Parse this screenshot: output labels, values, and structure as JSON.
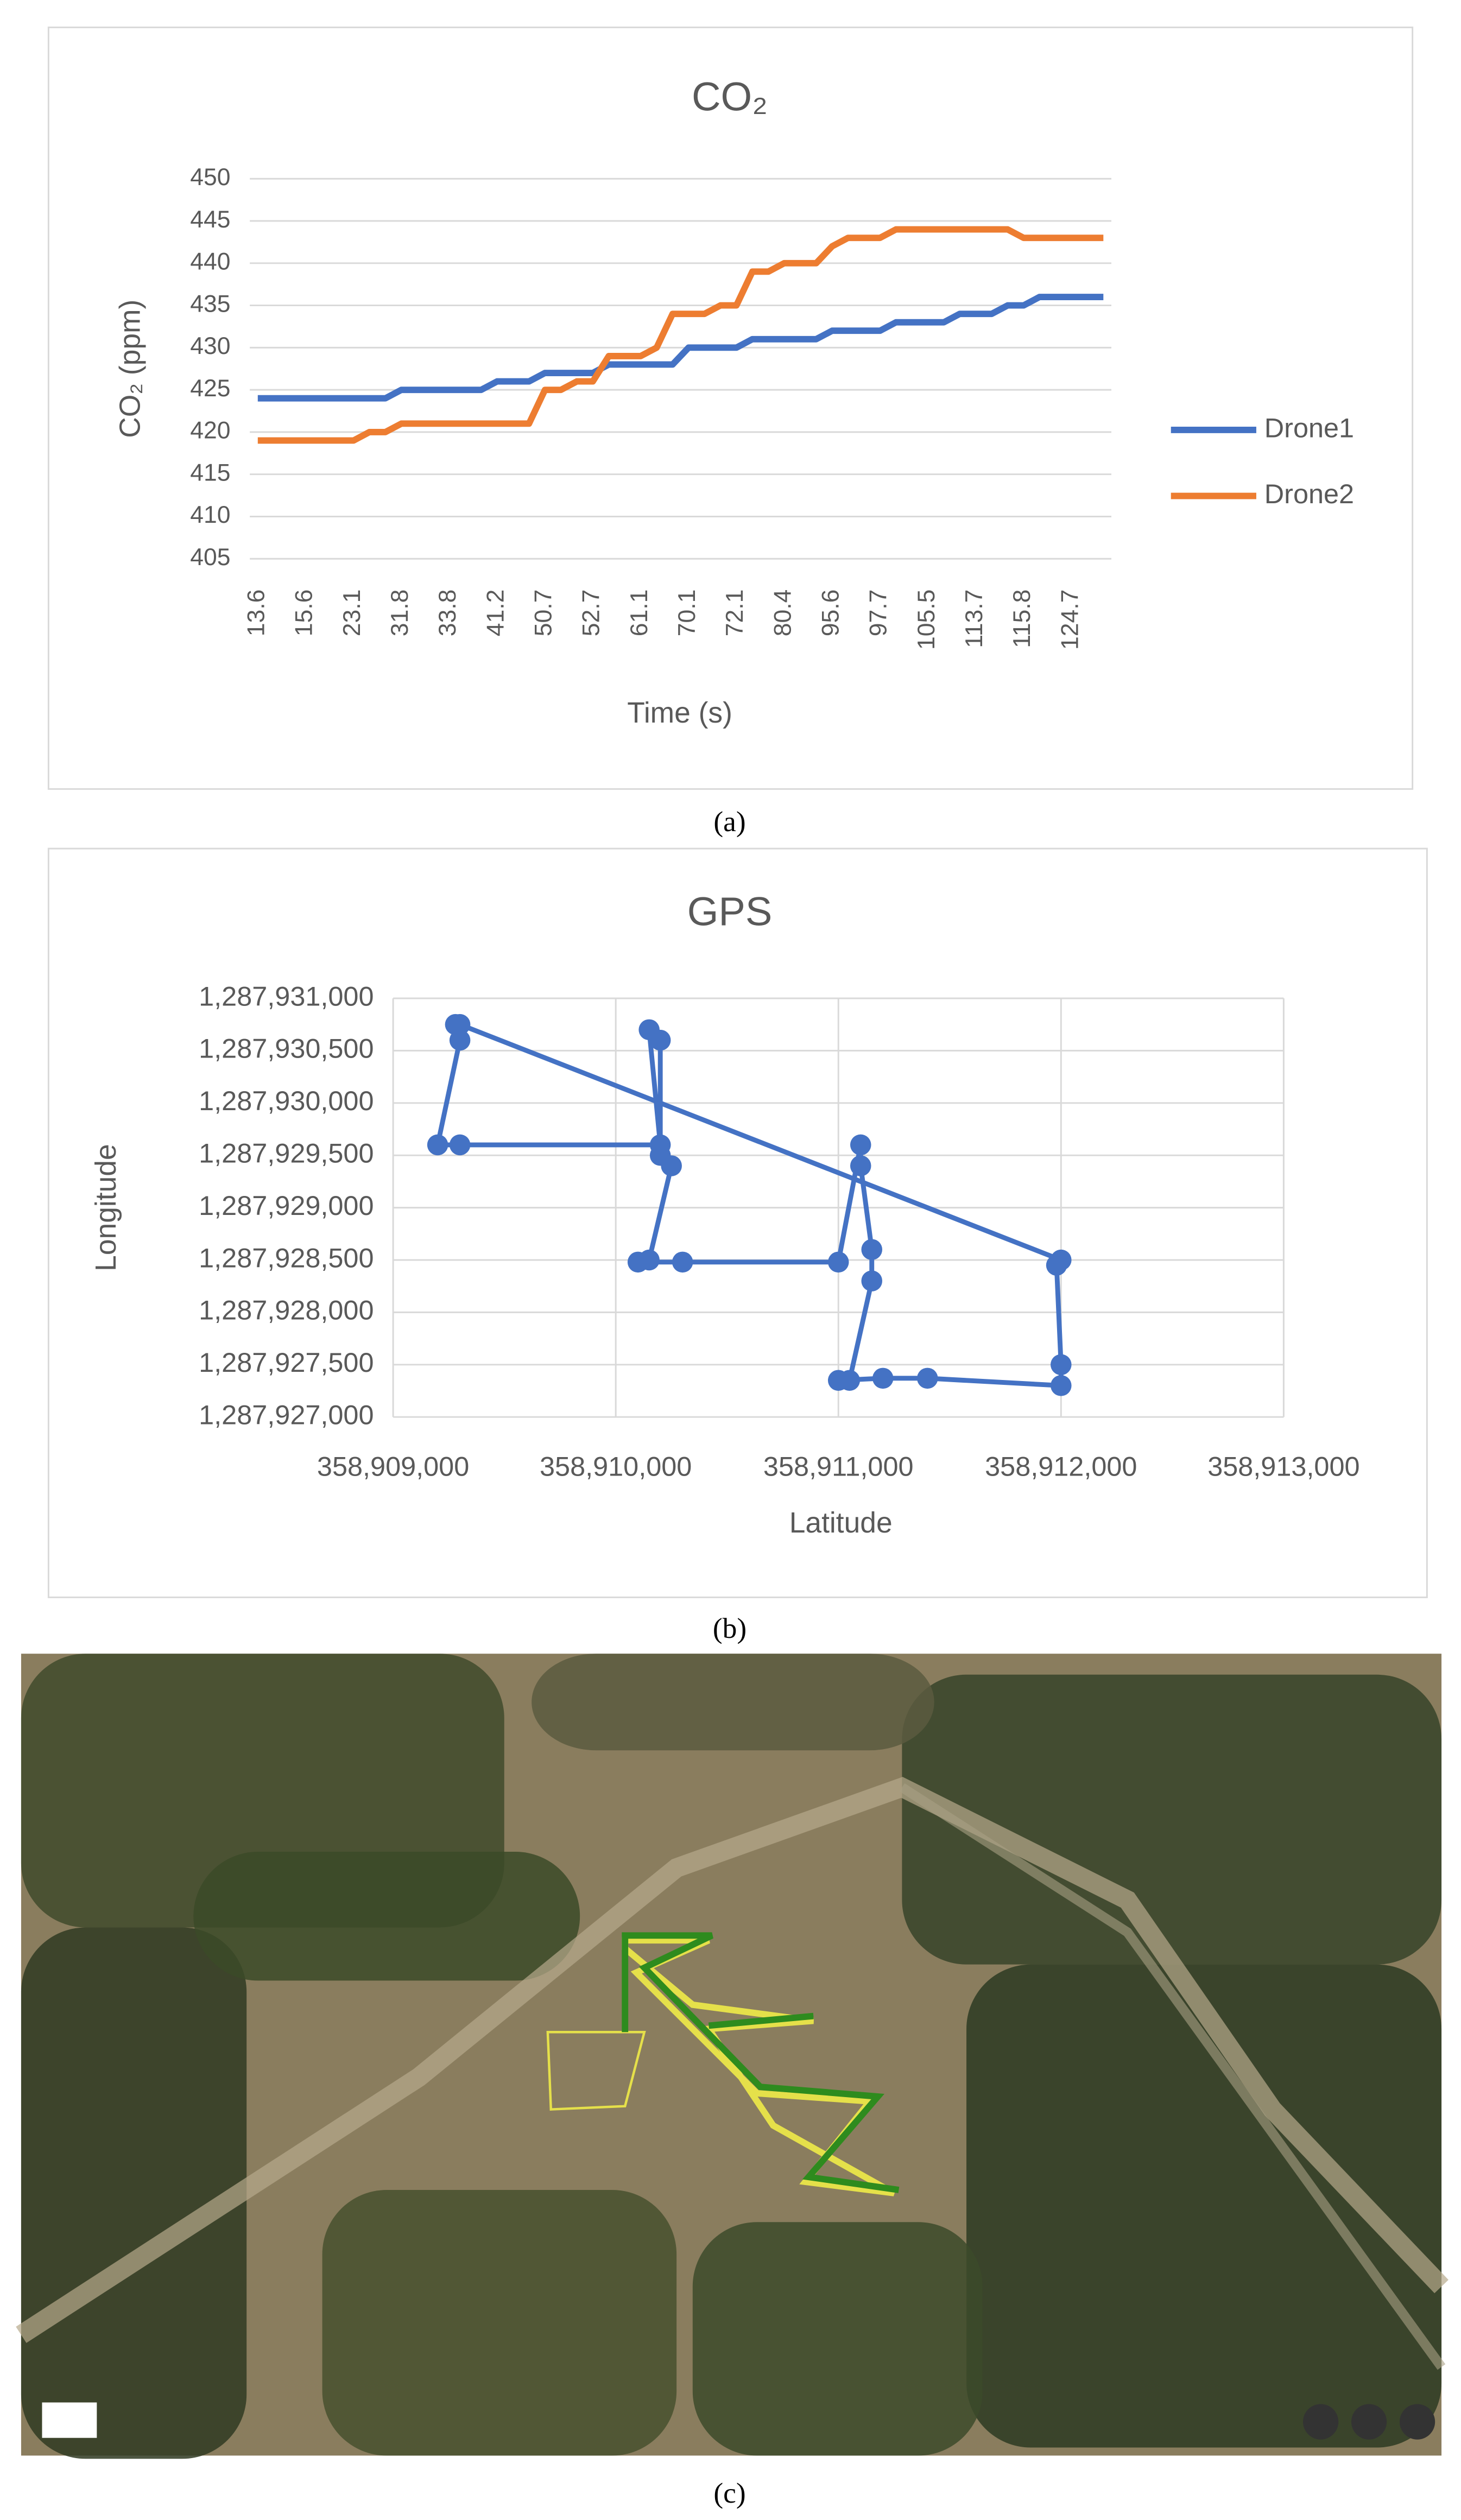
{
  "chart_data": [
    {
      "type": "line",
      "title": "CO₂",
      "y_label": "CO₂ (ppm)",
      "x_label": "Time (s)",
      "caption": "(a)",
      "categories": [
        "13.6",
        null,
        null,
        "15.6",
        null,
        null,
        "23.1",
        null,
        null,
        "31.8",
        null,
        null,
        "33.8",
        null,
        null,
        "41.2",
        null,
        null,
        "50.7",
        null,
        null,
        "52.7",
        null,
        null,
        "61.1",
        null,
        null,
        "70.1",
        null,
        null,
        "72.1",
        null,
        null,
        "80.4",
        null,
        null,
        "95.6",
        null,
        null,
        "97.7",
        null,
        null,
        "105.5",
        null,
        null,
        "113.7",
        null,
        null,
        "115.8",
        null,
        null,
        "124.7",
        null,
        null
      ],
      "series": [
        {
          "name": "Drone1",
          "color": "#4472c4",
          "values": [
            424,
            424,
            424,
            424,
            424,
            424,
            424,
            424,
            424,
            425,
            425,
            425,
            425,
            425,
            425,
            426,
            426,
            426,
            427,
            427,
            427,
            427,
            428,
            428,
            428,
            428,
            428,
            430,
            430,
            430,
            430,
            431,
            431,
            431,
            431,
            431,
            432,
            432,
            432,
            432,
            433,
            433,
            433,
            433,
            434,
            434,
            434,
            435,
            435,
            436,
            436,
            436,
            436,
            436
          ]
        },
        {
          "name": "Drone2",
          "color": "#ed7d31",
          "values": [
            419,
            419,
            419,
            419,
            419,
            419,
            419,
            420,
            420,
            421,
            421,
            421,
            421,
            421,
            421,
            421,
            421,
            421,
            425,
            425,
            426,
            426,
            429,
            429,
            429,
            430,
            434,
            434,
            434,
            435,
            435,
            439,
            439,
            440,
            440,
            440,
            442,
            443,
            443,
            443,
            444,
            444,
            444,
            444,
            444,
            444,
            444,
            444,
            443,
            443,
            443,
            443,
            443,
            443
          ]
        }
      ],
      "ylim": [
        405,
        450
      ],
      "yticks": [
        405,
        410,
        415,
        420,
        425,
        430,
        435,
        440,
        445,
        450
      ],
      "grid": true,
      "legend": "right"
    },
    {
      "type": "scatter",
      "title": "GPS",
      "y_label": "Longitude",
      "x_label": "Latitude",
      "caption": "(b)",
      "series": [
        {
          "name": "GPS",
          "color": "#4472c4",
          "x": [
            358909280,
            358909300,
            358909200,
            358909300,
            358910200,
            358910150,
            358910200,
            358910200,
            358910250,
            358910150,
            358910100,
            358910300,
            358911000,
            358911100,
            358911100,
            358911150,
            358911150,
            358911050,
            358911000,
            358911200,
            358911400,
            358912000,
            358912000,
            358911980,
            358912000,
            358909300
          ],
          "values": [
            1287930750,
            1287930600,
            1287929600,
            1287929600,
            1287929600,
            1287930700,
            1287930600,
            1287929500,
            1287929400,
            1287928500,
            1287928480,
            1287928480,
            1287928480,
            1287929600,
            1287929400,
            1287928600,
            1287928300,
            1287927350,
            1287927350,
            1287927370,
            1287927370,
            1287927300,
            1287927500,
            1287928450,
            1287928500,
            1287930750
          ]
        }
      ],
      "xlim": [
        358909000,
        358913000
      ],
      "xticks": [
        {
          "value": 358909000,
          "label": "358,909,000"
        },
        {
          "value": 358910000,
          "label": "358,910,000"
        },
        {
          "value": 358911000,
          "label": "358,911,000"
        },
        {
          "value": 358912000,
          "label": "358,912,000"
        },
        {
          "value": 358913000,
          "label": "358,913,000"
        }
      ],
      "ylim": [
        1287927000,
        1287931000
      ],
      "yticks": [
        {
          "value": 1287927000,
          "label": "1,287,927,000"
        },
        {
          "value": 1287927500,
          "label": "1,287,927,500"
        },
        {
          "value": 1287928000,
          "label": "1,287,928,000"
        },
        {
          "value": 1287928500,
          "label": "1,287,928,500"
        },
        {
          "value": 1287929000,
          "label": "1,287,929,000"
        },
        {
          "value": 1287929500,
          "label": "1,287,929,500"
        },
        {
          "value": 1287930000,
          "label": "1,287,930,000"
        },
        {
          "value": 1287930500,
          "label": "1,287,930,500"
        },
        {
          "value": 1287931000,
          "label": "1,287,931,000"
        }
      ],
      "grid": true
    },
    {
      "type": "image",
      "caption": "(c)"
    }
  ]
}
